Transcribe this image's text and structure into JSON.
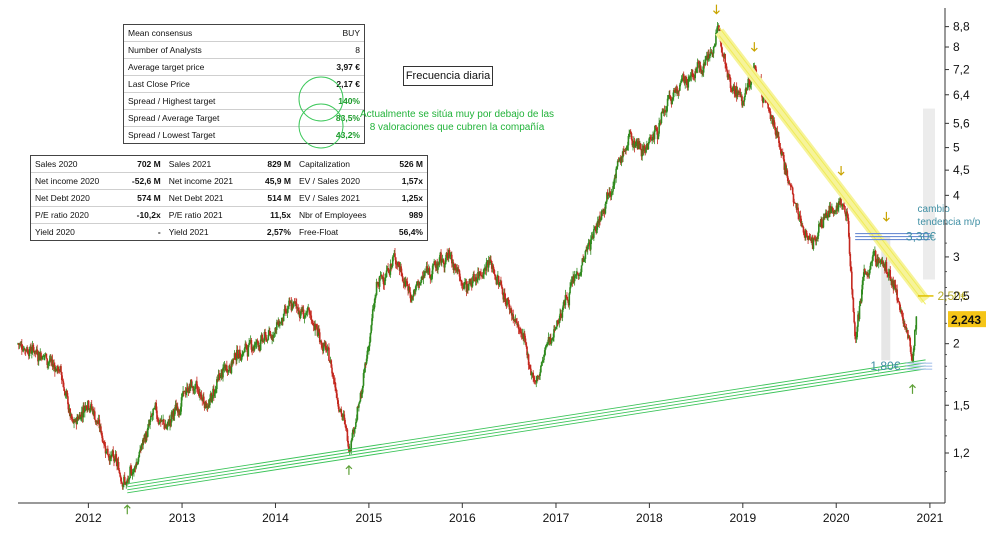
{
  "chart_data": {
    "type": "candlestick",
    "title": "",
    "subtitle": "Frecuencia diaria",
    "xlabel": "",
    "ylabel": "",
    "y_scale": "log",
    "ylim": [
      0.95,
      9.6
    ],
    "xlim": [
      "2011-04-01",
      "2021-03-01"
    ],
    "x_ticks": [
      "2012",
      "2013",
      "2014",
      "2015",
      "2016",
      "2017",
      "2018",
      "2019",
      "2020",
      "2021"
    ],
    "y_ticks": [
      "1,2",
      "1,5",
      "2",
      "2,5",
      "3",
      "4",
      "4,5",
      "5",
      "5,6",
      "6,4",
      "7,2",
      "8",
      "8,8"
    ],
    "grid": false,
    "price_path": [
      {
        "date": "2011-04-01",
        "close": 2.0
      },
      {
        "date": "2011-07-01",
        "close": 1.92
      },
      {
        "date": "2011-09-15",
        "close": 1.75
      },
      {
        "date": "2011-11-01",
        "close": 1.35
      },
      {
        "date": "2012-01-01",
        "close": 1.55
      },
      {
        "date": "2012-03-15",
        "close": 1.22
      },
      {
        "date": "2012-06-01",
        "close": 1.03
      },
      {
        "date": "2012-09-15",
        "close": 1.45
      },
      {
        "date": "2012-11-01",
        "close": 1.35
      },
      {
        "date": "2013-02-01",
        "close": 1.65
      },
      {
        "date": "2013-04-15",
        "close": 1.5
      },
      {
        "date": "2013-06-01",
        "close": 1.72
      },
      {
        "date": "2013-08-01",
        "close": 1.9
      },
      {
        "date": "2013-10-01",
        "close": 1.98
      },
      {
        "date": "2013-12-01",
        "close": 2.05
      },
      {
        "date": "2014-03-15",
        "close": 2.4
      },
      {
        "date": "2014-06-01",
        "close": 2.2
      },
      {
        "date": "2014-08-01",
        "close": 1.85
      },
      {
        "date": "2014-10-15",
        "close": 1.25
      },
      {
        "date": "2014-12-01",
        "close": 1.55
      },
      {
        "date": "2015-02-01",
        "close": 2.6
      },
      {
        "date": "2015-04-15",
        "close": 3.0
      },
      {
        "date": "2015-06-15",
        "close": 2.5
      },
      {
        "date": "2015-08-15",
        "close": 2.8
      },
      {
        "date": "2015-11-15",
        "close": 3.0
      },
      {
        "date": "2016-01-15",
        "close": 2.6
      },
      {
        "date": "2016-04-15",
        "close": 2.95
      },
      {
        "date": "2016-06-15",
        "close": 2.5
      },
      {
        "date": "2016-08-15",
        "close": 2.1
      },
      {
        "date": "2016-10-15",
        "close": 1.65
      },
      {
        "date": "2016-12-01",
        "close": 2.0
      },
      {
        "date": "2017-03-01",
        "close": 2.6
      },
      {
        "date": "2017-05-15",
        "close": 3.2
      },
      {
        "date": "2017-08-01",
        "close": 4.2
      },
      {
        "date": "2017-10-15",
        "close": 5.2
      },
      {
        "date": "2017-12-15",
        "close": 5.0
      },
      {
        "date": "2018-02-15",
        "close": 5.6
      },
      {
        "date": "2018-04-01",
        "close": 6.4
      },
      {
        "date": "2018-06-15",
        "close": 7.0
      },
      {
        "date": "2018-08-15",
        "close": 7.6
      },
      {
        "date": "2018-10-01",
        "close": 8.6
      },
      {
        "date": "2018-11-15",
        "close": 6.8
      },
      {
        "date": "2019-01-01",
        "close": 6.2
      },
      {
        "date": "2019-02-15",
        "close": 7.2
      },
      {
        "date": "2019-04-01",
        "close": 6.2
      },
      {
        "date": "2019-05-15",
        "close": 5.4
      },
      {
        "date": "2019-07-01",
        "close": 4.2
      },
      {
        "date": "2019-08-15",
        "close": 3.5
      },
      {
        "date": "2019-10-01",
        "close": 3.2
      },
      {
        "date": "2019-11-15",
        "close": 3.6
      },
      {
        "date": "2020-01-15",
        "close": 3.9
      },
      {
        "date": "2020-02-15",
        "close": 3.6
      },
      {
        "date": "2020-03-15",
        "close": 2.05
      },
      {
        "date": "2020-04-15",
        "close": 2.7
      },
      {
        "date": "2020-06-01",
        "close": 3.0
      },
      {
        "date": "2020-07-15",
        "close": 2.85
      },
      {
        "date": "2020-09-01",
        "close": 2.4
      },
      {
        "date": "2020-10-01",
        "close": 2.15
      },
      {
        "date": "2020-10-25",
        "close": 1.82
      },
      {
        "date": "2020-11-10",
        "close": 2.243
      }
    ],
    "lines": [
      {
        "name": "support",
        "color": "#3cc45a",
        "from": {
          "date": "2012-06-01",
          "value": 1.02
        },
        "to": {
          "date": "2020-12-15",
          "value": 1.82
        }
      },
      {
        "name": "resistance",
        "color": "#f0ec58",
        "from": {
          "date": "2018-10-01",
          "value": 8.6
        },
        "to": {
          "date": "2020-12-15",
          "value": 2.45
        }
      }
    ],
    "levels": [
      {
        "label": "3,30€",
        "value": 3.3,
        "color": "#6e8ed4",
        "label_color": "#3f8fa4",
        "from": "2020-03-15",
        "to": "2021-01-01"
      },
      {
        "label": "2,50€",
        "value": 2.5,
        "color": "#e0c000",
        "label_color": "#b8ae2a",
        "from": "2020-11-15",
        "to": "2021-01-15"
      },
      {
        "label": "1,80€",
        "value": 1.8,
        "color": "#a9c3ec",
        "label_color": "#3f8fa4",
        "from": "2020-10-01",
        "to": "2021-01-10"
      }
    ],
    "annotations": [
      {
        "text": "cambio",
        "date": "2020-12-15",
        "value": 3.7,
        "color": "#3f8fa4"
      },
      {
        "text": "tendencia m/p",
        "date": "2020-12-15",
        "value": 3.48,
        "color": "#3f8fa4"
      }
    ],
    "arrows_down": [
      {
        "date": "2018-09-20",
        "value": 9.35
      },
      {
        "date": "2019-02-15",
        "value": 7.85
      },
      {
        "date": "2020-01-20",
        "value": 4.4
      },
      {
        "date": "2020-07-15",
        "value": 3.55
      }
    ],
    "arrows_up": [
      {
        "date": "2012-06-01",
        "value": 0.94
      },
      {
        "date": "2014-10-15",
        "value": 1.13
      },
      {
        "date": "2020-10-25",
        "value": 1.65
      }
    ],
    "last_price": {
      "label": "2,243",
      "value": 2.243,
      "color": "#f5c518"
    }
  },
  "consensus": {
    "rows": [
      {
        "label": "Mean consensus",
        "value": "BUY",
        "style": "plain"
      },
      {
        "label": "Number of Analysts",
        "value": "8",
        "style": "plain"
      },
      {
        "label": "Average target price",
        "value": "3,97 €",
        "style": "bold"
      },
      {
        "label": "Last Close Price",
        "value": "2,17 €",
        "style": "bold"
      },
      {
        "label": "Spread / Highest target",
        "value": "140%",
        "style": "green"
      },
      {
        "label": "Spread / Average Target",
        "value": "83,5%",
        "style": "green"
      },
      {
        "label": "Spread / Lowest Target",
        "value": "43,2%",
        "style": "green"
      }
    ]
  },
  "fundamentals": {
    "rows": [
      [
        {
          "l": "Sales 2020",
          "v": "702 M"
        },
        {
          "l": "Sales 2021",
          "v": "829 M"
        },
        {
          "l": "Capitalization",
          "v": "526 M"
        }
      ],
      [
        {
          "l": "Net income 2020",
          "v": "-52,6 M"
        },
        {
          "l": "Net income 2021",
          "v": "45,9 M"
        },
        {
          "l": "EV / Sales 2020",
          "v": "1,57x"
        }
      ],
      [
        {
          "l": "Net Debt 2020",
          "v": "574 M"
        },
        {
          "l": "Net Debt 2021",
          "v": "514 M"
        },
        {
          "l": "EV / Sales 2021",
          "v": "1,25x"
        }
      ],
      [
        {
          "l": "P/E ratio 2020",
          "v": "-10,2x"
        },
        {
          "l": "P/E ratio 2021",
          "v": "11,5x"
        },
        {
          "l": "Nbr of Employees",
          "v": "989"
        }
      ],
      [
        {
          "l": "Yield 2020",
          "v": "-"
        },
        {
          "l": "Yield 2021",
          "v": "2,57%"
        },
        {
          "l": "Free-Float",
          "v": "56,4%"
        }
      ]
    ]
  },
  "frequency_label": "Frecuencia diaria",
  "note": "Actualmente se sitúa muy por debajo de las 8 valoraciones que cubren la compañía"
}
